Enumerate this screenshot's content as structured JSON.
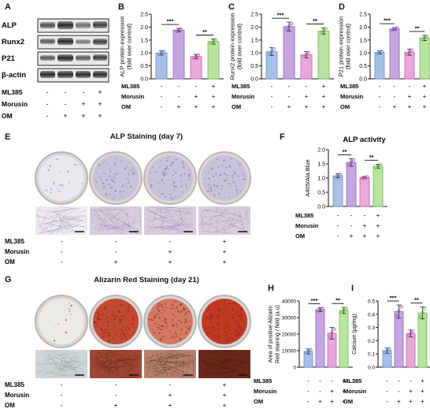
{
  "panels": {
    "A": "A",
    "B": "B",
    "C": "C",
    "D": "D",
    "E": "E",
    "F": "F",
    "G": "G",
    "H": "H",
    "I": "I"
  },
  "treatments": {
    "rows": [
      "ML385",
      "Morusin",
      "OM"
    ],
    "groups": [
      [
        "-",
        "-",
        "-"
      ],
      [
        "-",
        "-",
        "+"
      ],
      [
        "-",
        "+",
        "+"
      ],
      [
        "+",
        "+",
        "+"
      ]
    ]
  },
  "western_blot": {
    "bands": [
      "ALP",
      "Runx2",
      "P21",
      "β-actin"
    ]
  },
  "colors": {
    "g1": "#a8c0e8",
    "g2": "#c6a6e0",
    "g3": "#e7a8da",
    "g4": "#b8e3a0",
    "g1_edge": "#6d8cc6",
    "g2_edge": "#8f62bd",
    "g3_edge": "#c25fb4",
    "g4_edge": "#74b550"
  },
  "staining": {
    "alp_title": "ALP Staining (day 7)",
    "ars_title": "Alizarin Red Staining (day 21)"
  },
  "chart_data": [
    {
      "panel": "B",
      "type": "bar",
      "categories": [
        "1",
        "2",
        "3",
        "4"
      ],
      "values": [
        1.0,
        1.88,
        0.86,
        1.44
      ],
      "errors": [
        0.08,
        0.07,
        0.08,
        0.1
      ],
      "ylabel": "ALP protein expression (fold over control)",
      "ylim": [
        0,
        2.5
      ],
      "yticks": [
        0.0,
        0.5,
        1.0,
        1.5,
        2.0,
        2.5
      ],
      "sig": [
        {
          "from": 0,
          "to": 1,
          "label": "***"
        },
        {
          "from": 2,
          "to": 3,
          "label": "**"
        }
      ]
    },
    {
      "panel": "C",
      "type": "bar",
      "categories": [
        "1",
        "2",
        "3",
        "4"
      ],
      "values": [
        1.05,
        2.02,
        0.93,
        1.85
      ],
      "errors": [
        0.15,
        0.17,
        0.12,
        0.12
      ],
      "ylabel": "Runx2 protein expression (fold over control)",
      "ylim": [
        0,
        2.5
      ],
      "yticks": [
        0.0,
        0.5,
        1.0,
        1.5,
        2.0,
        2.5
      ],
      "sig": [
        {
          "from": 0,
          "to": 1,
          "label": "***"
        },
        {
          "from": 2,
          "to": 3,
          "label": "**"
        }
      ]
    },
    {
      "panel": "D",
      "type": "bar",
      "categories": [
        "1",
        "2",
        "3",
        "4"
      ],
      "values": [
        1.02,
        1.93,
        1.03,
        1.58
      ],
      "errors": [
        0.06,
        0.05,
        0.12,
        0.1
      ],
      "ylabel": "P21 protein expression (fold over control)",
      "ylim": [
        0,
        2.5
      ],
      "yticks": [
        0.0,
        0.5,
        1.0,
        1.5,
        2.0,
        2.5
      ],
      "sig": [
        {
          "from": 0,
          "to": 1,
          "label": "***"
        },
        {
          "from": 2,
          "to": 3,
          "label": "**"
        }
      ]
    },
    {
      "panel": "F",
      "type": "bar",
      "title": "ALP activity",
      "categories": [
        "1",
        "2",
        "3",
        "4"
      ],
      "values": [
        1.08,
        1.55,
        1.02,
        1.42
      ],
      "errors": [
        0.07,
        0.13,
        0.04,
        0.07
      ],
      "ylabel": "A405/Ala.Blue",
      "ylim": [
        0,
        2.0
      ],
      "yticks": [
        0.0,
        0.5,
        1.0,
        1.5,
        2.0
      ],
      "sig": [
        {
          "from": 0,
          "to": 1,
          "label": "**"
        },
        {
          "from": 2,
          "to": 3,
          "label": "**"
        }
      ]
    },
    {
      "panel": "H",
      "type": "bar",
      "categories": [
        "1",
        "2",
        "3",
        "4"
      ],
      "values": [
        9500,
        34800,
        20500,
        34300
      ],
      "errors": [
        1500,
        1200,
        3500,
        1800
      ],
      "ylabel": "Area of positive Alizarin Red staining / field (a.u)",
      "ylim": [
        0,
        40000
      ],
      "yticks": [
        0,
        10000,
        20000,
        30000,
        40000
      ],
      "sig": [
        {
          "from": 0,
          "to": 1,
          "label": "***"
        },
        {
          "from": 2,
          "to": 3,
          "label": "**"
        }
      ]
    },
    {
      "panel": "I",
      "type": "bar",
      "categories": [
        "1",
        "2",
        "3",
        "4"
      ],
      "values": [
        0.125,
        0.42,
        0.255,
        0.41
      ],
      "errors": [
        0.02,
        0.05,
        0.025,
        0.045
      ],
      "ylabel": "Calcium (μg/mg)",
      "ylim": [
        0,
        0.5
      ],
      "yticks": [
        0.0,
        0.1,
        0.2,
        0.3,
        0.4,
        0.5
      ],
      "sig": [
        {
          "from": 0,
          "to": 1,
          "label": "***"
        },
        {
          "from": 2,
          "to": 3,
          "label": "**"
        }
      ]
    }
  ]
}
